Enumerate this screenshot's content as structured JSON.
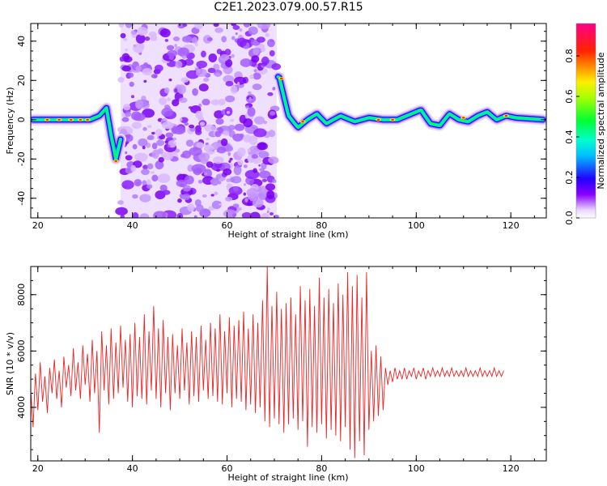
{
  "title": "C2E1.2023.079.00.57.R15",
  "colorbar": {
    "label": "Normalized spectral amplitude",
    "ticks": [
      {
        "value": 0.0,
        "label": "0.0"
      },
      {
        "value": 0.2,
        "label": "0.2"
      },
      {
        "value": 0.4,
        "label": "0.4"
      },
      {
        "value": 0.6,
        "label": "0.6"
      },
      {
        "value": 0.8,
        "label": "0.8"
      }
    ],
    "range": [
      0,
      0.96
    ]
  },
  "chart_data": [
    {
      "type": "heatmap",
      "xlabel": "Height of straight line (km)",
      "ylabel": "Frequency (Hz)",
      "xlim": [
        18.5,
        127.5
      ],
      "ylim": [
        -50,
        49
      ],
      "x_ticks": [
        {
          "value": 20,
          "label": "20"
        },
        {
          "value": 40,
          "label": "40"
        },
        {
          "value": 60,
          "label": "60"
        },
        {
          "value": 80,
          "label": "80"
        },
        {
          "value": 100,
          "label": "100"
        },
        {
          "value": 120,
          "label": "120"
        }
      ],
      "y_ticks": [
        {
          "value": -40,
          "label": "-40"
        },
        {
          "value": -20,
          "label": "-20"
        },
        {
          "value": 0,
          "label": "0"
        },
        {
          "value": 20,
          "label": "20"
        },
        {
          "value": 40,
          "label": "40"
        }
      ],
      "ridge": [
        [
          19,
          0
        ],
        [
          25,
          0
        ],
        [
          31,
          0
        ],
        [
          33,
          2
        ],
        [
          34.5,
          6
        ],
        [
          35.5,
          -8
        ],
        [
          36.5,
          -20
        ],
        [
          37.5,
          -10
        ],
        [
          71,
          22
        ],
        [
          72,
          12
        ],
        [
          73,
          2
        ],
        [
          75,
          -4
        ],
        [
          77,
          0
        ],
        [
          79,
          3
        ],
        [
          81,
          -2
        ],
        [
          84,
          2
        ],
        [
          87,
          -1
        ],
        [
          90,
          1
        ],
        [
          93,
          0
        ],
        [
          96,
          0
        ],
        [
          99,
          3
        ],
        [
          101,
          5
        ],
        [
          103,
          -2
        ],
        [
          105,
          -3
        ],
        [
          107,
          3
        ],
        [
          109,
          0
        ],
        [
          111,
          -1
        ],
        [
          113,
          2
        ],
        [
          115,
          4
        ],
        [
          117,
          0
        ],
        [
          119,
          2
        ],
        [
          121,
          1
        ],
        [
          127,
          0
        ]
      ],
      "noise_band": {
        "x_range": [
          37.5,
          70.5
        ],
        "y_range": [
          -50,
          49
        ]
      }
    },
    {
      "type": "line",
      "xlabel": "Height of straight line (km)",
      "ylabel": "SNR (10 * v/v)",
      "xlim": [
        18.5,
        127.5
      ],
      "ylim": [
        2100,
        9000
      ],
      "x_ticks": [
        {
          "value": 20,
          "label": "20"
        },
        {
          "value": 40,
          "label": "40"
        },
        {
          "value": 60,
          "label": "60"
        },
        {
          "value": 80,
          "label": "80"
        },
        {
          "value": 100,
          "label": "100"
        },
        {
          "value": 120,
          "label": "120"
        }
      ],
      "y_ticks": [
        {
          "value": 4000,
          "label": "4000"
        },
        {
          "value": 6000,
          "label": "6000"
        },
        {
          "value": 8000,
          "label": "8000"
        }
      ],
      "series": [
        {
          "color": "#ee2222",
          "x_step": 0.5,
          "x_start": 18.5,
          "values": [
            4600,
            3300,
            5200,
            3900,
            5600,
            4200,
            5100,
            3800,
            5400,
            4500,
            5700,
            4300,
            5300,
            4000,
            5800,
            4700,
            5500,
            4400,
            6100,
            4600,
            5600,
            4300,
            6200,
            4800,
            5900,
            4200,
            6400,
            4500,
            6000,
            3100,
            6700,
            4600,
            6200,
            4100,
            6800,
            4300,
            6300,
            4500,
            6900,
            4700,
            6400,
            4200,
            6600,
            4000,
            7000,
            4400,
            6500,
            4300,
            7300,
            4100,
            6700,
            4600,
            7600,
            4300,
            6800,
            4000,
            7100,
            4500,
            6500,
            3900,
            6600,
            4500,
            6200,
            4300,
            6800,
            4600,
            6300,
            4100,
            6700,
            4400,
            6500,
            4200,
            6900,
            4600,
            6400,
            4300,
            7000,
            4400,
            6800,
            4200,
            7300,
            4100,
            6700,
            4500,
            7200,
            4000,
            6900,
            4300,
            7100,
            4200,
            7400,
            3900,
            6800,
            4100,
            7300,
            3800,
            7000,
            4000,
            7800,
            3500,
            9000,
            3300,
            7600,
            3600,
            8100,
            3400,
            7500,
            3100,
            7700,
            3400,
            7900,
            3600,
            7300,
            3200,
            8300,
            3500,
            7800,
            2600,
            8200,
            3300,
            7600,
            3100,
            8600,
            3400,
            7900,
            2900,
            8200,
            3200,
            7700,
            3000,
            8400,
            2800,
            8000,
            3300,
            8800,
            2500,
            8300,
            2200,
            8700,
            2800,
            7900,
            2300,
            8800,
            3200,
            6000,
            3500,
            6200,
            3700,
            5800,
            3900,
            5400,
            4800,
            5300,
            4900,
            5400,
            5000,
            5300,
            5000,
            5400,
            5000,
            5300,
            5100,
            5400,
            5000,
            5300,
            5100,
            5400,
            5000,
            5300,
            5100,
            5400,
            5100,
            5300,
            5100,
            5400,
            5100,
            5300,
            5100,
            5400,
            5100,
            5300,
            5100,
            5300,
            5100,
            5400,
            5100,
            5300,
            5100,
            5300,
            5100,
            5400,
            5100,
            5300,
            5100,
            5300,
            5100,
            5400,
            5100,
            5300,
            5100,
            5300
          ]
        }
      ]
    }
  ]
}
